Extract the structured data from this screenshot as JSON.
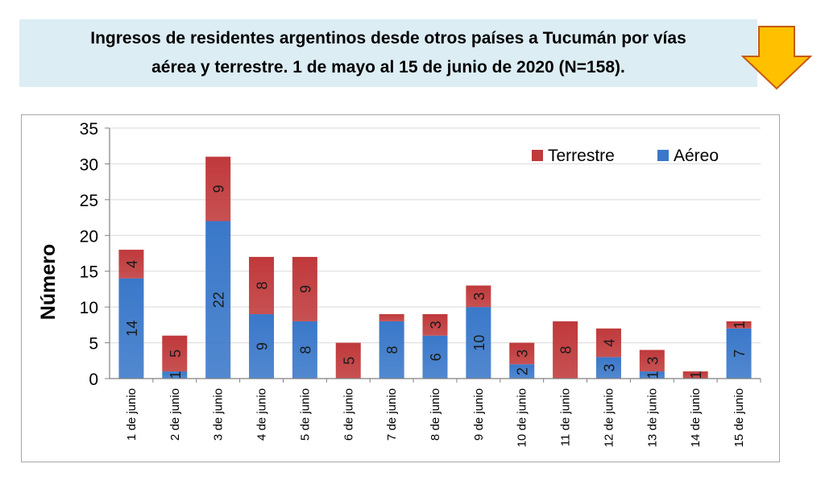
{
  "header": {
    "title_line1": "Ingresos de residentes argentinos desde otros países a Tucumán por vías",
    "title_line2": "aérea y terrestre. 1 de mayo al 15 de junio de 2020 (N=158).",
    "arrow_icon": "down-arrow-icon",
    "arrow_color": "#ffc000",
    "arrow_stroke": "#c55a11",
    "banner_color": "#dcedf4"
  },
  "chart_data": {
    "type": "bar",
    "stacked": true,
    "orientation": "vertical",
    "categories": [
      "1 de junio",
      "2 de junio",
      "3 de junio",
      "4 de junio",
      "5 de junio",
      "6 de junio",
      "7 de junio",
      "8 de junio",
      "9 de junio",
      "10 de junio",
      "11 de junio",
      "12 de junio",
      "13 de junio",
      "14 de junio",
      "15 de junio"
    ],
    "series": [
      {
        "name": "Aéreo",
        "color": "#3a78c9",
        "values": [
          14,
          1,
          22,
          9,
          8,
          0,
          8,
          6,
          10,
          2,
          0,
          3,
          1,
          0,
          7
        ]
      },
      {
        "name": "Terrestre",
        "color": "#c0393b",
        "values": [
          4,
          5,
          9,
          8,
          9,
          5,
          1,
          3,
          3,
          3,
          8,
          4,
          3,
          1,
          1
        ]
      }
    ],
    "data_labels": {
      "Aéreo": [
        "14",
        "1",
        "22",
        "9",
        "8",
        "",
        "8",
        "6",
        "10",
        "2",
        "",
        "3",
        "1",
        "",
        "7"
      ],
      "Terrestre": [
        "4",
        "5",
        "9",
        "8",
        "9",
        "5",
        "",
        "3",
        "3",
        "3",
        "8",
        "4",
        "3",
        "1",
        "1"
      ]
    },
    "title": "",
    "xlabel": "",
    "ylabel": "Número",
    "ylim": [
      0,
      35
    ],
    "yticks": [
      0,
      5,
      10,
      15,
      20,
      25,
      30,
      35
    ],
    "grid": true,
    "legend_position": "top-right",
    "legend_order": [
      "Terrestre",
      "Aéreo"
    ]
  }
}
